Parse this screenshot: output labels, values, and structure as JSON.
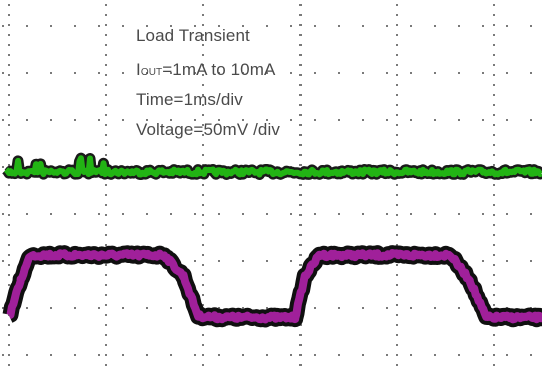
{
  "annotations": {
    "title": "Load Transient",
    "iout_prefix": "I",
    "iout_sub": "OUT",
    "iout_rest": "=1mA to 10mA",
    "time": "Time=1ms/div",
    "voltage": "Voltage=50mV /div"
  },
  "colors": {
    "grid": "#7a7a7a",
    "trace_upper": "#22b414",
    "trace_lower": "#a0209a",
    "trace_edge": "#101010"
  },
  "chart_data": {
    "type": "line",
    "title": "Load Transient",
    "x_unit": "ms",
    "x_range": [
      0,
      5.5
    ],
    "x_divisions": 5.5,
    "grid": true,
    "series": [
      {
        "name": "",
        "trace": "output voltage (green, flat)",
        "level": "flat",
        "x": [
          0,
          5.5
        ],
        "y": [
          0,
          0
        ]
      },
      {
        "name": "",
        "trace": "load step (magenta)",
        "x": [
          0,
          0.12,
          0.22,
          1.6,
          1.8,
          1.95,
          2.15,
          2.95,
          3.05,
          3.2,
          4.55,
          4.75,
          4.92,
          5.5
        ],
        "y": [
          0.06,
          0.55,
          0.88,
          0.88,
          0.6,
          0.08,
          0.06,
          0.06,
          0.6,
          0.88,
          0.88,
          0.55,
          0.06,
          0.06
        ],
        "y_meaning": "relative level, 1 = high, 0 = low"
      }
    ]
  }
}
